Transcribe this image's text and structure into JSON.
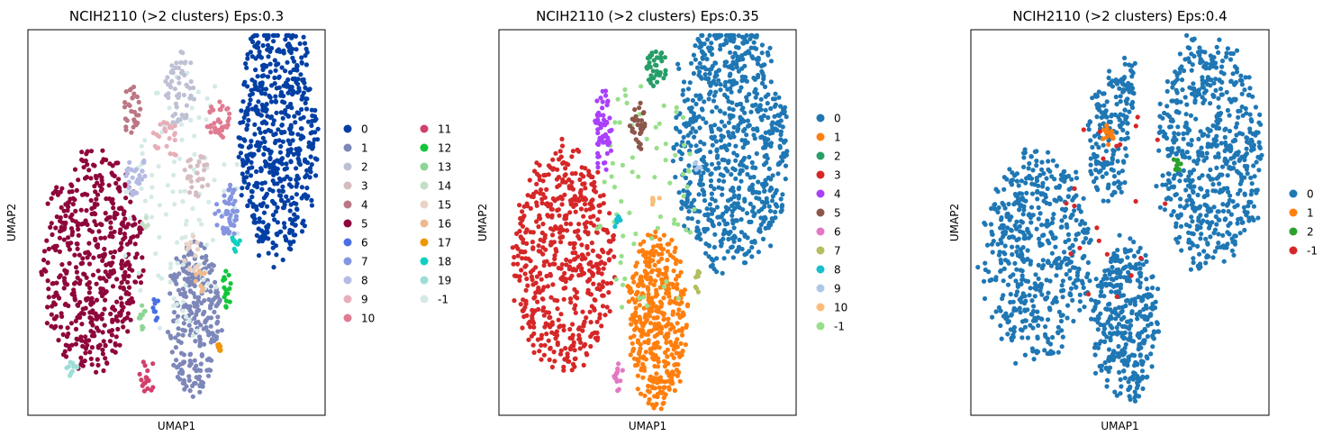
{
  "chart_data": [
    {
      "type": "scatter",
      "title": "NCIH2110 (>2 clusters) Eps:0.3",
      "xlabel": "UMAP1",
      "ylabel": "UMAP2",
      "grid": false,
      "ticks": false,
      "legend": {
        "placement": "right",
        "columns": 2,
        "entries": [
          {
            "label": "0",
            "color": "#023fa5"
          },
          {
            "label": "1",
            "color": "#7d87b9"
          },
          {
            "label": "2",
            "color": "#bec1d4"
          },
          {
            "label": "3",
            "color": "#d6bcc0"
          },
          {
            "label": "4",
            "color": "#bb7784"
          },
          {
            "label": "5",
            "color": "#8e063b"
          },
          {
            "label": "6",
            "color": "#4a6fe3"
          },
          {
            "label": "7",
            "color": "#8595e1"
          },
          {
            "label": "8",
            "color": "#b5bbe3"
          },
          {
            "label": "9",
            "color": "#e6afb9"
          },
          {
            "label": "10",
            "color": "#e07b91"
          },
          {
            "label": "11",
            "color": "#d33f6a"
          },
          {
            "label": "12",
            "color": "#11c638"
          },
          {
            "label": "13",
            "color": "#8dd593"
          },
          {
            "label": "14",
            "color": "#c6dec7"
          },
          {
            "label": "15",
            "color": "#ead3c6"
          },
          {
            "label": "16",
            "color": "#f0b98d"
          },
          {
            "label": "17",
            "color": "#ef9708"
          },
          {
            "label": "18",
            "color": "#0fcfc0"
          },
          {
            "label": "19",
            "color": "#9cded6"
          },
          {
            "label": "-1",
            "color": "#d5eae7"
          }
        ]
      },
      "clusters": [
        {
          "label": "5",
          "cx": 0.22,
          "cy": 0.4,
          "rx": 0.17,
          "ry": 0.28,
          "n": 520
        },
        {
          "label": "0",
          "cx": 0.84,
          "cy": 0.72,
          "rx": 0.13,
          "ry": 0.31,
          "n": 560
        },
        {
          "label": "1",
          "cx": 0.56,
          "cy": 0.25,
          "rx": 0.09,
          "ry": 0.2,
          "n": 260
        },
        {
          "label": "2",
          "cx": 0.51,
          "cy": 0.85,
          "rx": 0.05,
          "ry": 0.09,
          "n": 55
        },
        {
          "label": "3",
          "cx": 0.57,
          "cy": 0.62,
          "rx": 0.04,
          "ry": 0.06,
          "n": 28
        },
        {
          "label": "4",
          "cx": 0.35,
          "cy": 0.8,
          "rx": 0.03,
          "ry": 0.07,
          "n": 30
        },
        {
          "label": "6",
          "cx": 0.43,
          "cy": 0.28,
          "rx": 0.01,
          "ry": 0.04,
          "n": 8
        },
        {
          "label": "7",
          "cx": 0.67,
          "cy": 0.53,
          "rx": 0.04,
          "ry": 0.07,
          "n": 48
        },
        {
          "label": "8",
          "cx": 0.36,
          "cy": 0.63,
          "rx": 0.04,
          "ry": 0.06,
          "n": 30
        },
        {
          "label": "9",
          "cx": 0.47,
          "cy": 0.72,
          "rx": 0.05,
          "ry": 0.05,
          "n": 25
        },
        {
          "label": "10",
          "cx": 0.64,
          "cy": 0.77,
          "rx": 0.04,
          "ry": 0.05,
          "n": 35
        },
        {
          "label": "11",
          "cx": 0.4,
          "cy": 0.1,
          "rx": 0.03,
          "ry": 0.05,
          "n": 18
        },
        {
          "label": "12",
          "cx": 0.67,
          "cy": 0.33,
          "rx": 0.015,
          "ry": 0.05,
          "n": 16
        },
        {
          "label": "13",
          "cx": 0.39,
          "cy": 0.25,
          "rx": 0.02,
          "ry": 0.04,
          "n": 10
        },
        {
          "label": "14",
          "cx": 0.4,
          "cy": 0.5,
          "rx": 0.02,
          "ry": 0.02,
          "n": 6
        },
        {
          "label": "15",
          "cx": 0.55,
          "cy": 0.42,
          "rx": 0.03,
          "ry": 0.05,
          "n": 14
        },
        {
          "label": "16",
          "cx": 0.58,
          "cy": 0.35,
          "rx": 0.02,
          "ry": 0.03,
          "n": 8
        },
        {
          "label": "17",
          "cx": 0.64,
          "cy": 0.18,
          "rx": 0.01,
          "ry": 0.03,
          "n": 7
        },
        {
          "label": "18",
          "cx": 0.7,
          "cy": 0.44,
          "rx": 0.015,
          "ry": 0.03,
          "n": 10
        },
        {
          "label": "19",
          "cx": 0.14,
          "cy": 0.12,
          "rx": 0.03,
          "ry": 0.02,
          "n": 10
        },
        {
          "label": "-1",
          "cx": 0.52,
          "cy": 0.55,
          "rx": 0.2,
          "ry": 0.35,
          "n": 110
        }
      ]
    },
    {
      "type": "scatter",
      "title": "NCIH2110 (>2 clusters) Eps:0.35",
      "xlabel": "UMAP1",
      "ylabel": "UMAP2",
      "grid": false,
      "ticks": false,
      "legend": {
        "placement": "right",
        "columns": 1,
        "entries": [
          {
            "label": "0",
            "color": "#1f77b4"
          },
          {
            "label": "1",
            "color": "#ff7f0e"
          },
          {
            "label": "2",
            "color": "#279e68"
          },
          {
            "label": "3",
            "color": "#d62728"
          },
          {
            "label": "4",
            "color": "#aa40fc"
          },
          {
            "label": "5",
            "color": "#8c564b"
          },
          {
            "label": "6",
            "color": "#e377c2"
          },
          {
            "label": "7",
            "color": "#b5bd61"
          },
          {
            "label": "8",
            "color": "#17becf"
          },
          {
            "label": "9",
            "color": "#aec7e8"
          },
          {
            "label": "10",
            "color": "#ffbb78"
          },
          {
            "label": "-1",
            "color": "#98df8a"
          }
        ]
      },
      "clusters": [
        {
          "label": "3",
          "cx": 0.22,
          "cy": 0.4,
          "rx": 0.17,
          "ry": 0.28,
          "n": 560
        },
        {
          "label": "0",
          "cx": 0.78,
          "cy": 0.7,
          "rx": 0.19,
          "ry": 0.32,
          "n": 760
        },
        {
          "label": "1",
          "cx": 0.53,
          "cy": 0.25,
          "rx": 0.1,
          "ry": 0.22,
          "n": 420
        },
        {
          "label": "2",
          "cx": 0.53,
          "cy": 0.9,
          "rx": 0.04,
          "ry": 0.05,
          "n": 40
        },
        {
          "label": "4",
          "cx": 0.35,
          "cy": 0.73,
          "rx": 0.03,
          "ry": 0.12,
          "n": 60
        },
        {
          "label": "5",
          "cx": 0.47,
          "cy": 0.75,
          "rx": 0.03,
          "ry": 0.06,
          "n": 30
        },
        {
          "label": "6",
          "cx": 0.4,
          "cy": 0.1,
          "rx": 0.02,
          "ry": 0.04,
          "n": 14
        },
        {
          "label": "7",
          "cx": 0.67,
          "cy": 0.35,
          "rx": 0.01,
          "ry": 0.03,
          "n": 8
        },
        {
          "label": "8",
          "cx": 0.39,
          "cy": 0.5,
          "rx": 0.02,
          "ry": 0.02,
          "n": 8
        },
        {
          "label": "9",
          "cx": 0.67,
          "cy": 0.65,
          "rx": 0.01,
          "ry": 0.02,
          "n": 5
        },
        {
          "label": "10",
          "cx": 0.52,
          "cy": 0.56,
          "rx": 0.02,
          "ry": 0.02,
          "n": 5
        },
        {
          "label": "-1",
          "cx": 0.5,
          "cy": 0.55,
          "rx": 0.18,
          "ry": 0.33,
          "n": 70
        }
      ]
    },
    {
      "type": "scatter",
      "title": "NCIH2110 (>2 clusters) Eps:0.4",
      "xlabel": "UMAP1",
      "ylabel": "UMAP2",
      "grid": false,
      "ticks": false,
      "legend": {
        "placement": "right",
        "columns": 1,
        "entries": [
          {
            "label": "0",
            "color": "#1f77b4"
          },
          {
            "label": "1",
            "color": "#ff7f0e"
          },
          {
            "label": "2",
            "color": "#2ca02c"
          },
          {
            "label": "-1",
            "color": "#d62728"
          }
        ]
      },
      "clusters": [
        {
          "label": "0",
          "cx": 0.22,
          "cy": 0.42,
          "rx": 0.18,
          "ry": 0.27,
          "n": 520
        },
        {
          "label": "0",
          "cx": 0.8,
          "cy": 0.68,
          "rx": 0.17,
          "ry": 0.3,
          "n": 600
        },
        {
          "label": "0",
          "cx": 0.52,
          "cy": 0.25,
          "rx": 0.11,
          "ry": 0.21,
          "n": 360
        },
        {
          "label": "0",
          "cx": 0.46,
          "cy": 0.72,
          "rx": 0.07,
          "ry": 0.17,
          "n": 150
        },
        {
          "label": "0",
          "cx": 0.53,
          "cy": 0.86,
          "rx": 0.03,
          "ry": 0.08,
          "n": 40
        },
        {
          "label": "1",
          "cx": 0.46,
          "cy": 0.73,
          "rx": 0.02,
          "ry": 0.04,
          "n": 16
        },
        {
          "label": "2",
          "cx": 0.69,
          "cy": 0.65,
          "rx": 0.015,
          "ry": 0.025,
          "n": 8
        },
        {
          "label": "-1",
          "cx": 0.48,
          "cy": 0.55,
          "rx": 0.18,
          "ry": 0.32,
          "n": 22
        }
      ]
    }
  ]
}
